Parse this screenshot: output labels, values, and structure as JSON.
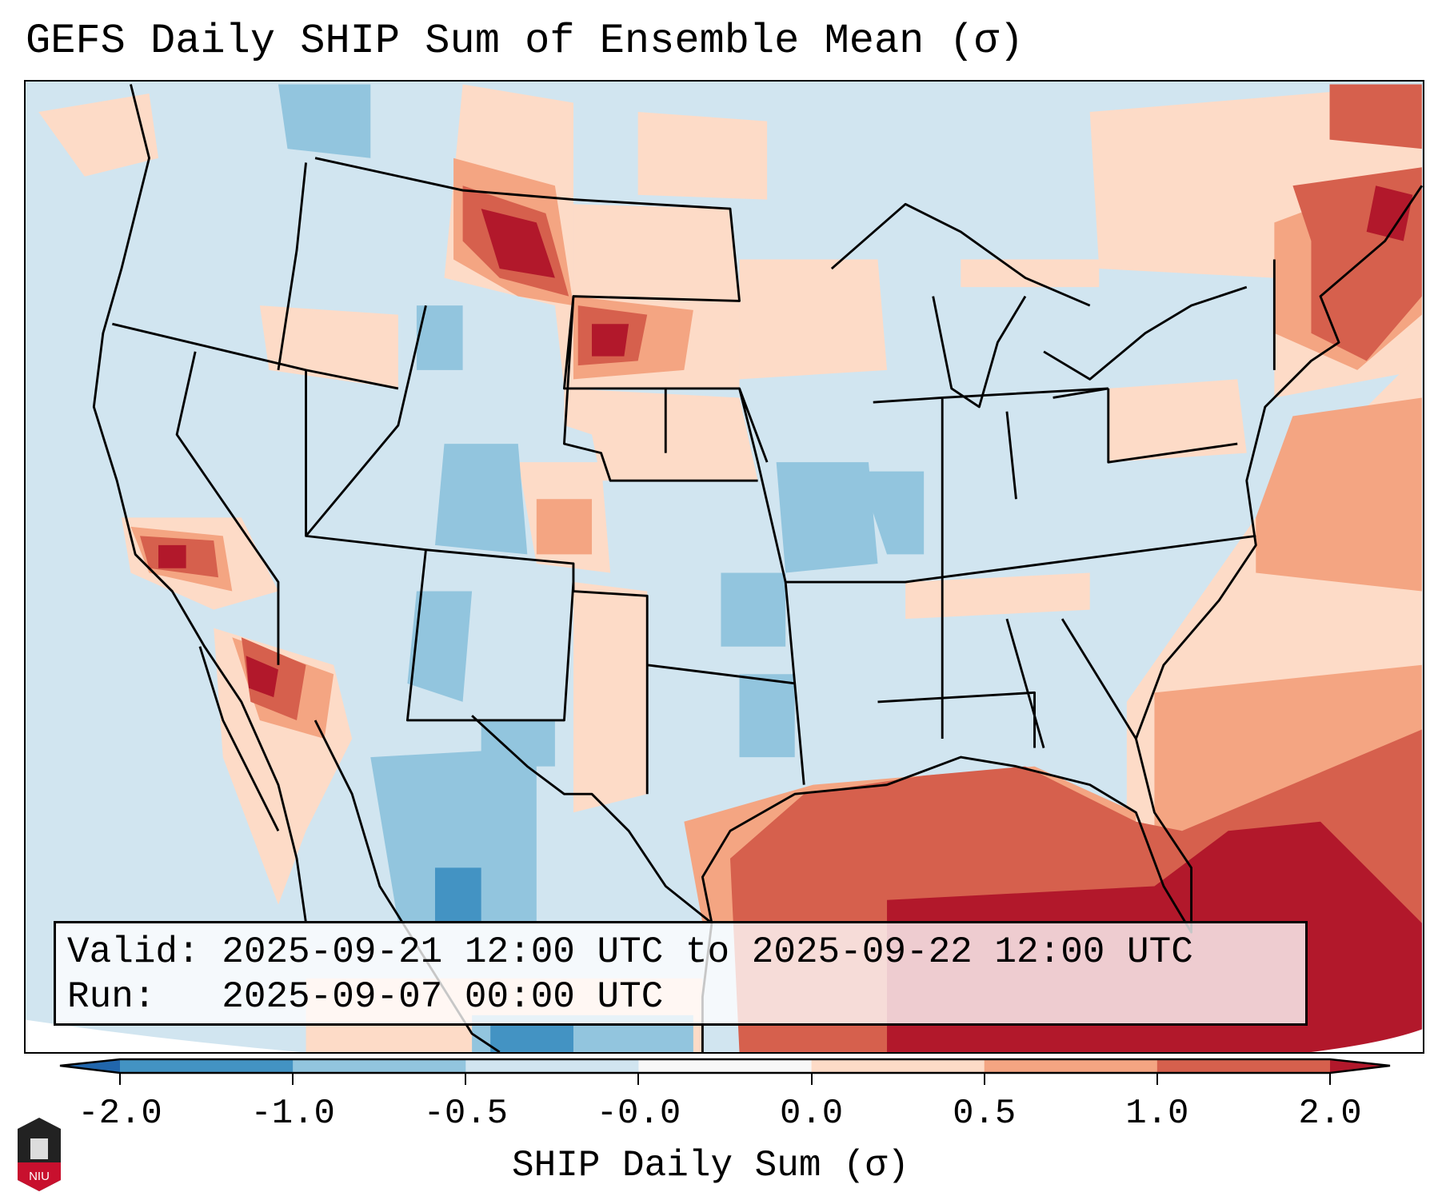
{
  "title": "GEFS Daily SHIP Sum of Ensemble Mean (σ)",
  "info": {
    "valid": "Valid: 2025-09-21 12:00 UTC to 2025-09-22 12:00 UTC",
    "run": "Run:   2025-09-07 00:00 UTC"
  },
  "colorbar": {
    "label": "SHIP Daily Sum (σ)",
    "ticks": [
      "-2.0",
      "-1.0",
      "-0.5",
      "-0.0",
      "0.0",
      "0.5",
      "1.0",
      "2.0"
    ],
    "colors": [
      "#2166ac",
      "#4393c3",
      "#92c5de",
      "#d1e5f0",
      "#f7f7f7",
      "#fddbc7",
      "#f4a582",
      "#d6604d",
      "#b2182b"
    ]
  },
  "logo": {
    "text": "NIU"
  }
}
